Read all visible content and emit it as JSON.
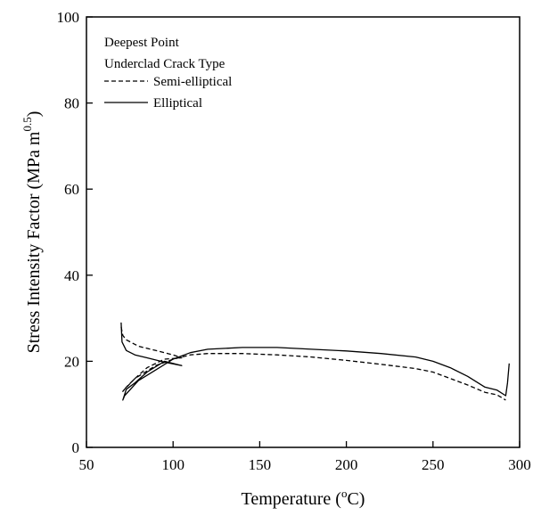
{
  "chart_data": {
    "type": "line",
    "xlabel": "Temperature (",
    "xlabel_sup": "o",
    "xlabel_end": "C)",
    "ylabel": "Stress Intensity Factor (MPa m",
    "ylabel_sup": "0.5",
    "ylabel_end": ")",
    "xlim": [
      50,
      300
    ],
    "ylim": [
      0,
      100
    ],
    "xticks": [
      50,
      100,
      150,
      200,
      250,
      300
    ],
    "yticks": [
      0,
      20,
      40,
      60,
      80,
      100
    ],
    "grid": false,
    "legend_placement": "top-left",
    "legend_heading_1": "Deepest Point",
    "legend_heading_2": "Underclad Crack Type",
    "series": [
      {
        "name": "Semi-elliptical",
        "style": "dashed",
        "color": "#000000",
        "points": [
          [
            70,
            28
          ],
          [
            71,
            26
          ],
          [
            73,
            25
          ],
          [
            80,
            23.5
          ],
          [
            90,
            22.5
          ],
          [
            100,
            21.5
          ],
          [
            105,
            20.8
          ],
          [
            105,
            20.8
          ],
          [
            95,
            20.5
          ],
          [
            85,
            18.5
          ],
          [
            78,
            16
          ],
          [
            73,
            14
          ],
          [
            71,
            13
          ],
          [
            72,
            13.5
          ],
          [
            78,
            16
          ],
          [
            90,
            19
          ],
          [
            100,
            20.5
          ],
          [
            110,
            21.5
          ],
          [
            120,
            21.8
          ],
          [
            140,
            21.8
          ],
          [
            160,
            21.5
          ],
          [
            180,
            21
          ],
          [
            200,
            20.2
          ],
          [
            220,
            19.3
          ],
          [
            240,
            18.3
          ],
          [
            250,
            17.5
          ],
          [
            260,
            16
          ],
          [
            270,
            14.5
          ],
          [
            280,
            12.8
          ],
          [
            287,
            12.2
          ],
          [
            292,
            11
          ]
        ]
      },
      {
        "name": "Elliptical",
        "style": "solid",
        "color": "#000000",
        "points": [
          [
            70,
            29
          ],
          [
            70.5,
            24.5
          ],
          [
            73,
            22.5
          ],
          [
            78,
            21.5
          ],
          [
            85,
            20.8
          ],
          [
            95,
            19.8
          ],
          [
            105,
            19
          ],
          [
            105,
            19
          ],
          [
            95,
            20
          ],
          [
            85,
            17.5
          ],
          [
            78,
            15
          ],
          [
            73,
            13.5
          ],
          [
            71,
            11
          ],
          [
            72,
            12
          ],
          [
            80,
            15.5
          ],
          [
            90,
            18
          ],
          [
            100,
            20.5
          ],
          [
            110,
            22
          ],
          [
            120,
            22.8
          ],
          [
            140,
            23.2
          ],
          [
            160,
            23.2
          ],
          [
            180,
            22.8
          ],
          [
            200,
            22.4
          ],
          [
            220,
            21.8
          ],
          [
            240,
            21
          ],
          [
            250,
            20
          ],
          [
            260,
            18.5
          ],
          [
            270,
            16.5
          ],
          [
            280,
            14
          ],
          [
            287,
            13.3
          ],
          [
            292,
            12
          ],
          [
            293,
            15
          ],
          [
            294,
            19.5
          ]
        ]
      }
    ]
  }
}
